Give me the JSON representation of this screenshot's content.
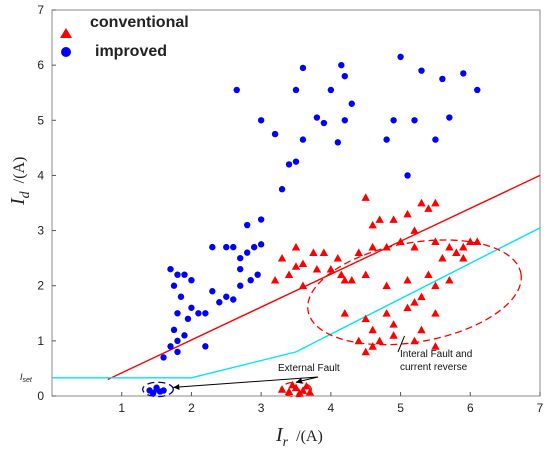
{
  "chart_data": {
    "type": "scatter",
    "xlim": [
      0,
      7
    ],
    "ylim": [
      0,
      7
    ],
    "x_ticks": [
      1,
      2,
      3,
      4,
      5,
      6,
      7
    ],
    "y_ticks": [
      0,
      1,
      2,
      3,
      4,
      5,
      6,
      7
    ],
    "y_tick_extra_label": "I_set",
    "xlabel": {
      "main": "I",
      "sub": "r",
      "unit": "/(A)"
    },
    "ylabel": {
      "main": "I",
      "sub": "d",
      "unit": "/(A)"
    },
    "legend": {
      "placement": "top-left",
      "entries": [
        {
          "label": "conventional",
          "marker": "triangle",
          "color": "#ff0000"
        },
        {
          "label": "improved",
          "marker": "circle",
          "color": "#0000ff"
        }
      ]
    },
    "series": [
      {
        "name": "conventional",
        "marker": "triangle",
        "color": "#ff0000",
        "points": [
          [
            3.3,
            0.12
          ],
          [
            3.4,
            0.08
          ],
          [
            3.5,
            0.15
          ],
          [
            3.6,
            0.1
          ],
          [
            3.7,
            0.07
          ],
          [
            3.45,
            0.2
          ],
          [
            3.55,
            0.05
          ],
          [
            3.65,
            0.18
          ],
          [
            3.2,
            2.1
          ],
          [
            3.3,
            2.5
          ],
          [
            3.4,
            2.2
          ],
          [
            3.5,
            2.7
          ],
          [
            3.6,
            2.4
          ],
          [
            3.75,
            2.6
          ],
          [
            3.8,
            2.3
          ],
          [
            3.9,
            2.6
          ],
          [
            3.6,
            2.0
          ],
          [
            4.0,
            2.3
          ],
          [
            4.1,
            2.5
          ],
          [
            4.15,
            2.2
          ],
          [
            4.2,
            2.1
          ],
          [
            3.5,
            2.35
          ],
          [
            4.5,
            3.6
          ],
          [
            4.7,
            3.2
          ],
          [
            4.9,
            3.2
          ],
          [
            5.1,
            3.3
          ],
          [
            5.2,
            3.0
          ],
          [
            5.3,
            3.5
          ],
          [
            5.4,
            3.4
          ],
          [
            5.5,
            3.5
          ],
          [
            4.6,
            3.1
          ],
          [
            4.4,
            2.6
          ],
          [
            4.6,
            2.7
          ],
          [
            4.8,
            2.7
          ],
          [
            5.0,
            2.8
          ],
          [
            5.2,
            2.7
          ],
          [
            5.5,
            2.8
          ],
          [
            5.7,
            2.7
          ],
          [
            5.8,
            2.6
          ],
          [
            5.9,
            2.7
          ],
          [
            6.0,
            2.8
          ],
          [
            6.1,
            2.8
          ],
          [
            5.6,
            2.5
          ],
          [
            5.9,
            2.5
          ],
          [
            4.3,
            2.1
          ],
          [
            4.5,
            2.2
          ],
          [
            4.8,
            2.0
          ],
          [
            5.1,
            2.1
          ],
          [
            5.4,
            2.2
          ],
          [
            5.7,
            2.1
          ],
          [
            5.5,
            2.0
          ],
          [
            4.2,
            1.5
          ],
          [
            4.5,
            1.4
          ],
          [
            4.8,
            1.5
          ],
          [
            5.1,
            1.6
          ],
          [
            5.2,
            1.7
          ],
          [
            5.3,
            1.8
          ],
          [
            5.5,
            1.5
          ],
          [
            4.6,
            1.2
          ],
          [
            4.9,
            1.3
          ],
          [
            4.4,
            1.0
          ],
          [
            4.6,
            0.9
          ],
          [
            4.7,
            1.0
          ],
          [
            4.9,
            1.1
          ],
          [
            5.2,
            1.0
          ],
          [
            5.5,
            0.9
          ],
          [
            5.3,
            1.2
          ],
          [
            4.5,
            0.8
          ]
        ]
      },
      {
        "name": "improved",
        "marker": "circle",
        "color": "#0000ff",
        "points": [
          [
            1.4,
            0.1
          ],
          [
            1.45,
            0.05
          ],
          [
            1.5,
            0.12
          ],
          [
            1.55,
            0.08
          ],
          [
            1.6,
            0.1
          ],
          [
            1.5,
            0.15
          ],
          [
            1.6,
            0.7
          ],
          [
            1.7,
            0.9
          ],
          [
            1.8,
            1.0
          ],
          [
            1.9,
            1.1
          ],
          [
            1.75,
            1.2
          ],
          [
            1.95,
            1.4
          ],
          [
            2.1,
            1.5
          ],
          [
            1.8,
            0.8
          ],
          [
            2.2,
            0.9
          ],
          [
            1.7,
            2.3
          ],
          [
            1.8,
            2.2
          ],
          [
            1.9,
            2.2
          ],
          [
            1.75,
            2.0
          ],
          [
            1.85,
            1.8
          ],
          [
            2.0,
            1.6
          ],
          [
            1.8,
            1.5
          ],
          [
            2.0,
            2.1
          ],
          [
            2.2,
            1.5
          ],
          [
            2.3,
            1.9
          ],
          [
            2.4,
            1.7
          ],
          [
            2.5,
            1.8
          ],
          [
            2.6,
            1.75
          ],
          [
            2.3,
            2.7
          ],
          [
            2.5,
            2.7
          ],
          [
            2.6,
            2.7
          ],
          [
            2.7,
            2.5
          ],
          [
            2.8,
            2.6
          ],
          [
            2.9,
            2.7
          ],
          [
            2.7,
            2.3
          ],
          [
            2.85,
            2.1
          ],
          [
            2.95,
            2.2
          ],
          [
            3.0,
            2.75
          ],
          [
            2.7,
            2.0
          ],
          [
            2.8,
            3.1
          ],
          [
            3.0,
            3.2
          ],
          [
            2.65,
            5.55
          ],
          [
            3.0,
            5.0
          ],
          [
            3.2,
            4.75
          ],
          [
            3.3,
            3.75
          ],
          [
            3.4,
            4.2
          ],
          [
            3.5,
            4.25
          ],
          [
            3.6,
            4.65
          ],
          [
            3.5,
            5.55
          ],
          [
            3.6,
            5.95
          ],
          [
            3.8,
            5.05
          ],
          [
            3.9,
            4.95
          ],
          [
            4.0,
            5.55
          ],
          [
            4.1,
            4.6
          ],
          [
            4.15,
            6.0
          ],
          [
            4.2,
            5.0
          ],
          [
            4.3,
            5.3
          ],
          [
            4.2,
            5.8
          ],
          [
            4.8,
            4.65
          ],
          [
            4.9,
            5.0
          ],
          [
            5.0,
            6.15
          ],
          [
            5.1,
            4.0
          ],
          [
            5.2,
            5.0
          ],
          [
            5.3,
            5.9
          ],
          [
            5.5,
            4.65
          ],
          [
            5.6,
            5.75
          ],
          [
            5.7,
            5.05
          ],
          [
            5.9,
            5.85
          ],
          [
            6.1,
            5.55
          ]
        ]
      }
    ],
    "lines": [
      {
        "name": "conventional-characteristic",
        "color": "#ff0000",
        "points": [
          [
            0.8,
            0.3
          ],
          [
            7,
            4.0
          ]
        ]
      },
      {
        "name": "improved-characteristic",
        "color": "#00e5ee",
        "points": [
          [
            0,
            0.33
          ],
          [
            2,
            0.33
          ],
          [
            3.5,
            0.8
          ],
          [
            7,
            3.05
          ]
        ]
      }
    ],
    "ellipses": [
      {
        "name": "external-fault-improved",
        "color": "#00008b",
        "cx": 1.52,
        "cy": 0.12,
        "rx": 0.22,
        "ry": 0.13
      },
      {
        "name": "external-fault-conventional",
        "color": "#ff0000",
        "cx": 3.5,
        "cy": 0.12,
        "rx": 0.22,
        "ry": 0.13
      },
      {
        "name": "internal-fault-region",
        "color": "#ff0000",
        "cx": 5.2,
        "cy": 1.88,
        "rx": 1.55,
        "ry": 0.9,
        "angle": -10
      }
    ],
    "annotations": [
      {
        "name": "external-fault-label",
        "text": "External Fault"
      },
      {
        "name": "internal-fault-label-line1",
        "text": "Interal Fault and"
      },
      {
        "name": "internal-fault-label-line2",
        "text": "current reverse"
      }
    ]
  }
}
